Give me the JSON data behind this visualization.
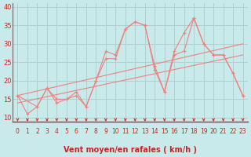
{
  "background_color": "#c8eaea",
  "grid_color": "#b0cccc",
  "line_color": "#f08080",
  "xlabel": "Vent moyen/en rafales ( km/h )",
  "ylabel_ticks": [
    10,
    15,
    20,
    25,
    30,
    35,
    40
  ],
  "xlim": [
    -0.5,
    23.5
  ],
  "ylim": [
    9,
    41
  ],
  "x_ticks": [
    0,
    1,
    2,
    3,
    4,
    5,
    6,
    7,
    8,
    9,
    10,
    11,
    12,
    13,
    14,
    15,
    16,
    17,
    18,
    19,
    20,
    21,
    22,
    23
  ],
  "series1_x": [
    0,
    1,
    2,
    3,
    4,
    5,
    6,
    7,
    8,
    9,
    10,
    11,
    12,
    13,
    14,
    15,
    16,
    17,
    18,
    19,
    20,
    21,
    22,
    23
  ],
  "series1_y": [
    16,
    11,
    13,
    18,
    14,
    15,
    16,
    13,
    20,
    28,
    27,
    34,
    36,
    35,
    23,
    17,
    28,
    33,
    37,
    30,
    27,
    27,
    22,
    16
  ],
  "series2_x": [
    0,
    2,
    3,
    4,
    5,
    6,
    7,
    8,
    9,
    10,
    11,
    12,
    13,
    14,
    15,
    16,
    17,
    18,
    19,
    20,
    21,
    22,
    23
  ],
  "series2_y": [
    16,
    13,
    18,
    15,
    15,
    17,
    13,
    20,
    26,
    26,
    34,
    36,
    35,
    24,
    17,
    27,
    28,
    37,
    30,
    27,
    27,
    22,
    16
  ],
  "trend1_x": [
    0,
    23
  ],
  "trend1_y": [
    14,
    27
  ],
  "trend2_x": [
    0,
    23
  ],
  "trend2_y": [
    16,
    30
  ],
  "arrow_color": "#cc2222",
  "xlabel_color": "#cc2222",
  "tick_label_color": "#cc2222",
  "tick_fontsize": 5.5,
  "xlabel_fontsize": 7,
  "ytick_fontsize": 6
}
